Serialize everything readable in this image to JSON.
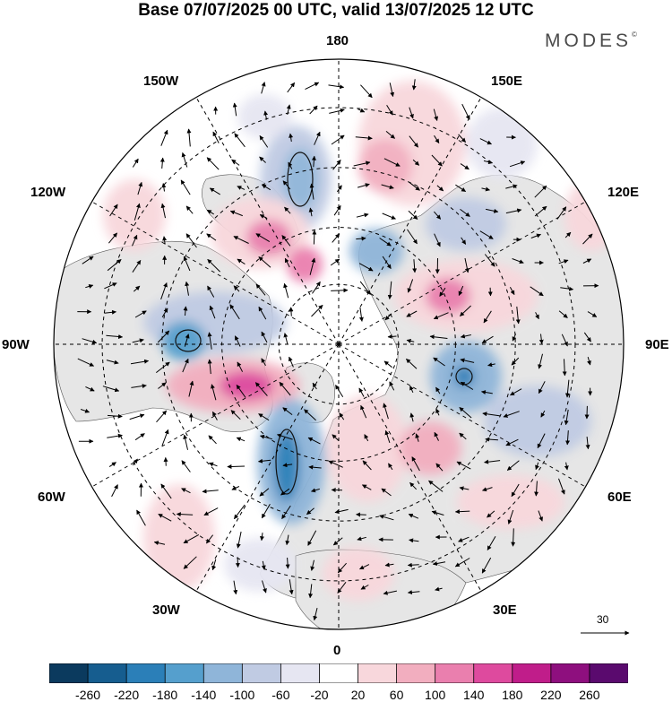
{
  "title": "Base 07/07/2025 00 UTC, valid 13/07/2025 12 UTC",
  "brand": "MODES",
  "brand_mark": "©",
  "map": {
    "projection": "north-polar-stereographic",
    "longitude_labels": [
      {
        "id": "lon-180",
        "text": "180",
        "lon": 180
      },
      {
        "id": "lon-150e",
        "text": "150E",
        "lon": 150
      },
      {
        "id": "lon-120e",
        "text": "120E",
        "lon": 120
      },
      {
        "id": "lon-90e",
        "text": "90E",
        "lon": 90
      },
      {
        "id": "lon-60e",
        "text": "60E",
        "lon": 60
      },
      {
        "id": "lon-30e",
        "text": "30E",
        "lon": 30
      },
      {
        "id": "lon-0",
        "text": "0",
        "lon": 0
      },
      {
        "id": "lon-30w",
        "text": "30W",
        "lon": -30
      },
      {
        "id": "lon-60w",
        "text": "60W",
        "lon": -60
      },
      {
        "id": "lon-90w",
        "text": "90W",
        "lon": -90
      },
      {
        "id": "lon-120w",
        "text": "120W",
        "lon": -120
      },
      {
        "id": "lon-150w",
        "text": "150W",
        "lon": -150
      }
    ],
    "reference_vector": "30",
    "colors": {
      "land": "#e6e6e6",
      "ocean": "#ffffff"
    }
  },
  "colorbar": {
    "colors": [
      "#0b3a5e",
      "#165d8f",
      "#2b7fb8",
      "#559fcd",
      "#8fb5d9",
      "#c0cbe3",
      "#e6e6f2",
      "#ffffff",
      "#f8d7dc",
      "#f2aebf",
      "#ea7fae",
      "#de4a9e",
      "#c01d8a",
      "#8e0f7e",
      "#5a0a6e"
    ],
    "ticks": [
      "-260",
      "-220",
      "-180",
      "-140",
      "-100",
      "-60",
      "-20",
      "20",
      "60",
      "100",
      "140",
      "180",
      "220",
      "260"
    ]
  }
}
